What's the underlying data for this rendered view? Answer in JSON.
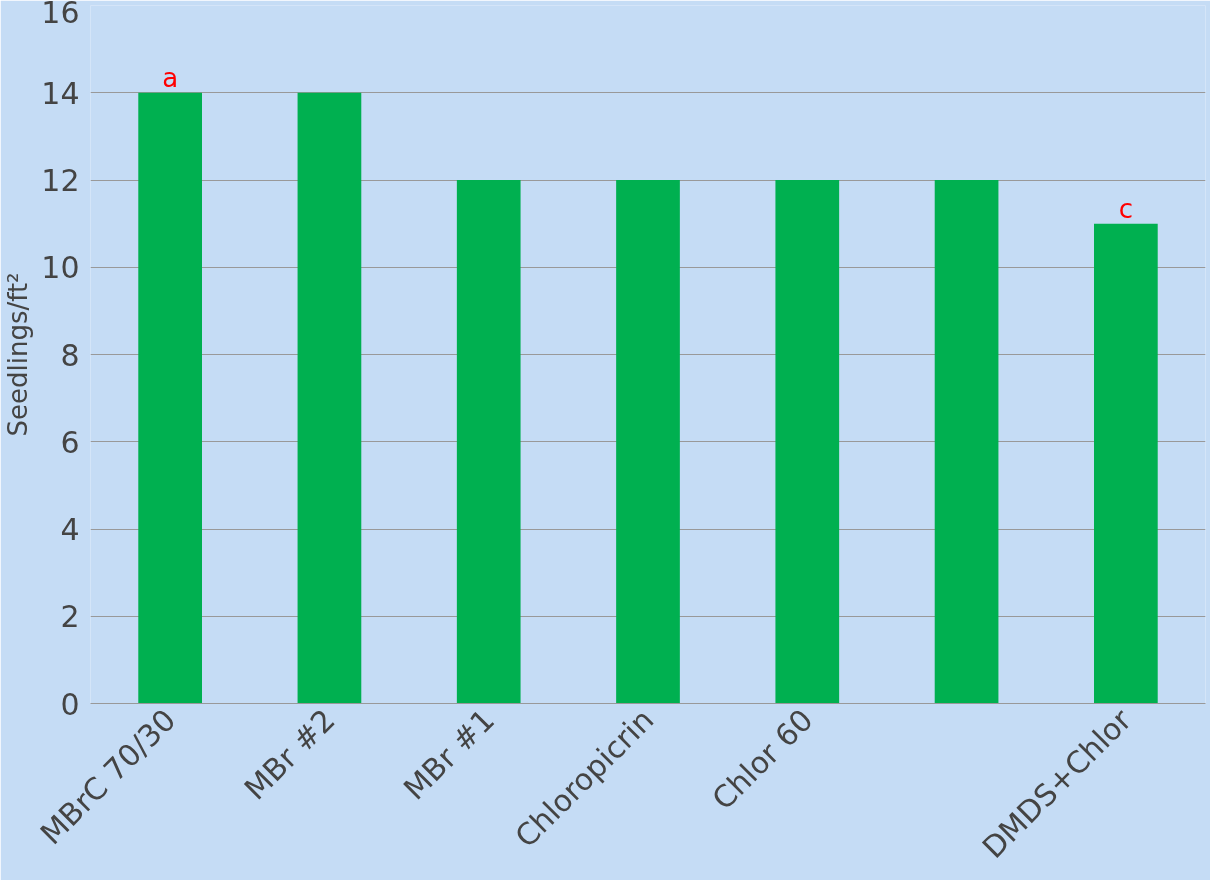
{
  "chart_data": {
    "type": "bar",
    "ylabel": "Seedlings/ft²",
    "categories": [
      "MBrC 70/30",
      "MBr #2",
      "MBr #1",
      "Chloropicrin",
      "Chlor 60",
      null,
      "DMDS+Chlor"
    ],
    "values": [
      14,
      14,
      12,
      12,
      12,
      12,
      11
    ],
    "color": "#00b050",
    "ylim": [
      0,
      16
    ],
    "yticks": [
      0,
      2,
      4,
      6,
      8,
      10,
      12,
      14,
      16
    ],
    "grid": "y",
    "annotations": [
      {
        "text": "a",
        "x": "MBrC 70/30",
        "y": 14
      },
      {
        "text": "c",
        "x": "DMDS+Chlor",
        "y": 11
      }
    ]
  }
}
